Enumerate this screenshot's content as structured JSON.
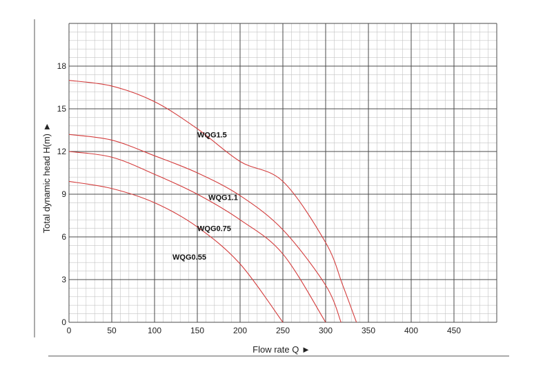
{
  "chart_data": {
    "type": "line",
    "xlabel": "Flow rate Q ►",
    "ylabel": "Total dynamic head H(m) ►",
    "xlim": [
      0,
      500
    ],
    "ylim": [
      0,
      21
    ],
    "x_ticks": [
      0,
      50,
      100,
      150,
      200,
      250,
      300,
      350,
      400,
      450
    ],
    "y_ticks": [
      0,
      3,
      6,
      9,
      12,
      15,
      18
    ],
    "grid": true,
    "line_color": "#d33b3b",
    "series": [
      {
        "name": "WQG1.5",
        "x": [
          0,
          50,
          100,
          150,
          200,
          250,
          300,
          320,
          336
        ],
        "y": [
          17.0,
          16.6,
          15.5,
          13.6,
          11.3,
          9.9,
          5.6,
          2.6,
          0
        ]
      },
      {
        "name": "WQG1.1",
        "x": [
          0,
          50,
          100,
          150,
          200,
          250,
          300,
          318
        ],
        "y": [
          13.2,
          12.8,
          11.7,
          10.5,
          8.9,
          6.5,
          2.6,
          0
        ]
      },
      {
        "name": "WQG0.75",
        "x": [
          0,
          50,
          100,
          150,
          200,
          250,
          300
        ],
        "y": [
          12.0,
          11.6,
          10.4,
          9.0,
          7.2,
          4.8,
          0
        ]
      },
      {
        "name": "WQG0.55",
        "x": [
          0,
          50,
          100,
          150,
          200,
          250
        ],
        "y": [
          9.9,
          9.4,
          8.4,
          6.7,
          4.1,
          0
        ]
      }
    ]
  }
}
